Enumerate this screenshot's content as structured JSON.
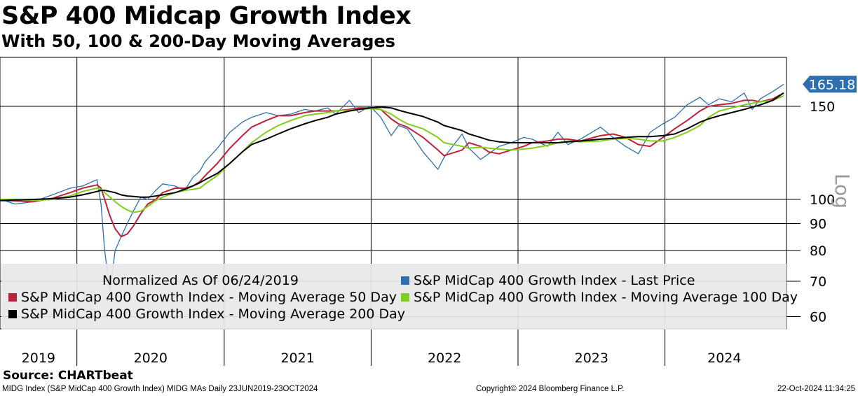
{
  "chart_data": {
    "type": "line",
    "title": "S&P 400 Midcap Growth Index",
    "subtitle": "With 50, 100 & 200-Day Moving Averages",
    "scale": "log",
    "ylim": [
      55,
      200
    ],
    "yticks": [
      60,
      70,
      80,
      90,
      100,
      150
    ],
    "x_year_labels": [
      "2019",
      "2020",
      "2021",
      "2022",
      "2023",
      "2024"
    ],
    "normalization_note": "Normalized As Of 06/24/2019",
    "last_value_label": "165.18",
    "grid": "on",
    "legend_placement": "bottom",
    "x": [
      "2019-06-24",
      "2019-08-01",
      "2019-09-15",
      "2019-11-01",
      "2019-12-15",
      "2020-01-15",
      "2020-02-20",
      "2020-03-01",
      "2020-03-10",
      "2020-03-23",
      "2020-04-05",
      "2020-04-20",
      "2020-05-05",
      "2020-05-20",
      "2020-06-08",
      "2020-06-25",
      "2020-07-15",
      "2020-08-01",
      "2020-09-01",
      "2020-09-25",
      "2020-10-15",
      "2020-11-01",
      "2020-11-15",
      "2020-12-15",
      "2021-01-15",
      "2021-02-15",
      "2021-03-10",
      "2021-04-15",
      "2021-05-15",
      "2021-06-15",
      "2021-07-20",
      "2021-08-15",
      "2021-09-15",
      "2021-10-05",
      "2021-11-08",
      "2021-12-01",
      "2021-12-30",
      "2022-01-25",
      "2022-02-20",
      "2022-03-10",
      "2022-04-01",
      "2022-05-10",
      "2022-06-16",
      "2022-07-01",
      "2022-08-15",
      "2022-09-01",
      "2022-09-30",
      "2022-10-20",
      "2022-11-15",
      "2022-12-15",
      "2023-01-15",
      "2023-02-05",
      "2023-03-15",
      "2023-04-10",
      "2023-05-05",
      "2023-06-05",
      "2023-07-25",
      "2023-08-25",
      "2023-09-25",
      "2023-10-27",
      "2023-11-25",
      "2023-12-27",
      "2024-01-25",
      "2024-02-25",
      "2024-03-28",
      "2024-04-18",
      "2024-05-15",
      "2024-06-15",
      "2024-07-16",
      "2024-08-05",
      "2024-08-25",
      "2024-09-25",
      "2024-10-22"
    ],
    "series": [
      {
        "name": "S&P MidCap 400 Growth Index - Last Price",
        "color": "#2e6fb0",
        "values": [
          100,
          98,
          99,
          102,
          105,
          106,
          109,
          98,
          80,
          67,
          80,
          85,
          90,
          95,
          101,
          100,
          104,
          107,
          106,
          104,
          110,
          113,
          118,
          125,
          134,
          140,
          143,
          146,
          144,
          145,
          148,
          147,
          149,
          145,
          154,
          146,
          150,
          143,
          132,
          138,
          136,
          123,
          114,
          120,
          133,
          125,
          119,
          122,
          126,
          128,
          131,
          130,
          126,
          134,
          127,
          130,
          137,
          131,
          126,
          122,
          134,
          139,
          143,
          151,
          156,
          151,
          155,
          153,
          159,
          148,
          155,
          160,
          165.18
        ]
      },
      {
        "name": "S&P MidCap 400 Growth Index - Moving Average 50 Day",
        "color": "#c0203c",
        "values": [
          99.5,
          99.3,
          99,
          100.5,
          103,
          105,
          106.5,
          105,
          100,
          93,
          88,
          85,
          86,
          89,
          94,
          98,
          100,
          103,
          105,
          105,
          106,
          108,
          111,
          117,
          125,
          132,
          137,
          141,
          144,
          144,
          146,
          147,
          147,
          147,
          148,
          149,
          149,
          148,
          142,
          139,
          137,
          131,
          124,
          121,
          124,
          128,
          126,
          123,
          122,
          124,
          126,
          128,
          129,
          130,
          130,
          129,
          132,
          133,
          131,
          127,
          126,
          131,
          136,
          141,
          147,
          150,
          151,
          152,
          154,
          154,
          153,
          155,
          159
        ]
      },
      {
        "name": "S&P MidCap 400 Growth Index - Moving Average 100 Day",
        "color": "#7fce1e",
        "values": [
          100,
          100,
          99.5,
          100,
          101.5,
          103.5,
          105,
          104.5,
          103,
          101,
          99,
          97,
          95.5,
          94.5,
          95,
          97,
          99.5,
          101,
          103,
          104,
          104.5,
          105,
          107,
          111,
          117,
          123,
          128,
          134,
          138,
          141,
          144,
          145,
          146,
          147,
          147.5,
          148,
          148.5,
          148,
          145,
          142,
          139,
          136,
          131,
          128,
          126,
          125,
          125.5,
          125,
          124.5,
          124,
          124.5,
          125,
          126.5,
          128,
          129,
          128.5,
          129,
          130,
          130.5,
          130,
          129,
          129,
          131,
          134,
          138,
          143,
          147,
          149,
          151,
          152,
          153,
          154,
          157
        ]
      },
      {
        "name": "S&P MidCap 400 Growth Index - Moving Average 200 Day",
        "color": "#000000",
        "values": [
          99.5,
          99.8,
          100,
          100.3,
          101,
          102,
          103.5,
          104,
          104,
          103.5,
          103,
          102,
          101.5,
          101.3,
          101,
          101,
          101.5,
          102,
          103,
          104.5,
          106,
          107.5,
          109,
          112,
          117,
          123,
          127,
          130,
          133,
          136,
          139,
          141,
          143,
          145,
          147,
          148,
          149,
          149.5,
          149,
          147.5,
          146,
          143.5,
          140,
          138,
          135,
          133,
          131,
          129.5,
          128.5,
          128,
          128,
          128,
          128,
          128,
          128.5,
          129,
          130,
          130.5,
          131,
          131.5,
          131.5,
          132,
          133,
          136,
          140,
          142,
          144,
          146,
          148,
          149.5,
          151,
          154,
          159
        ]
      }
    ]
  },
  "footer": {
    "source": "Source: CHARTbeat",
    "left": "MIDG Index (S&P MidCap 400 Growth Index) MIDG MAs  Daily 23JUN2019-23OCT2024",
    "middle": "Copyright© 2024 Bloomberg Finance L.P.",
    "right": "22-Oct-2024 11:34:25"
  },
  "axis": {
    "scale_label": "Log"
  }
}
